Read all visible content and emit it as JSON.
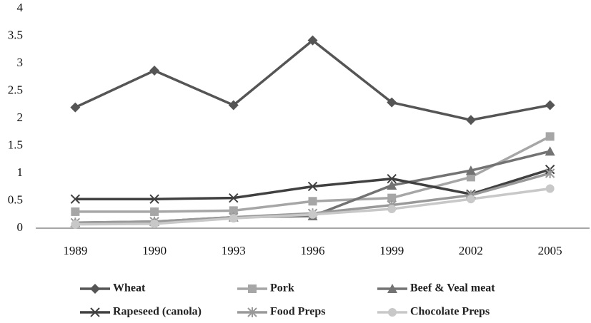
{
  "chart_data": {
    "type": "line",
    "categories": [
      "1989",
      "1990",
      "1993",
      "1996",
      "1999",
      "2002",
      "2005"
    ],
    "series": [
      {
        "name": "Wheat",
        "color": "#555555",
        "marker": "diamond",
        "values": [
          2.2,
          2.87,
          2.24,
          3.42,
          2.29,
          1.97,
          2.24
        ]
      },
      {
        "name": "Pork",
        "color": "#a6a6a6",
        "marker": "square",
        "values": [
          0.3,
          0.3,
          0.32,
          0.49,
          0.55,
          0.93,
          1.67
        ]
      },
      {
        "name": "Beef & Veal meat",
        "color": "#737373",
        "marker": "triangle",
        "values": [
          0.1,
          0.12,
          0.2,
          0.22,
          0.78,
          1.05,
          1.4
        ]
      },
      {
        "name": "Rapeseed (canola)",
        "color": "#404040",
        "marker": "x",
        "values": [
          0.53,
          0.53,
          0.55,
          0.76,
          0.9,
          0.62,
          1.07
        ]
      },
      {
        "name": "Food Preps",
        "color": "#999999",
        "marker": "star",
        "values": [
          0.1,
          0.12,
          0.2,
          0.27,
          0.42,
          0.6,
          1.0
        ]
      },
      {
        "name": "Chocolate Preps",
        "color": "#c8c8c8",
        "marker": "circle",
        "values": [
          0.07,
          0.08,
          0.18,
          0.25,
          0.35,
          0.53,
          0.72
        ]
      }
    ],
    "ylim": [
      0,
      4
    ],
    "yticks": [
      0,
      0.5,
      1,
      1.5,
      2,
      2.5,
      3,
      3.5,
      4
    ],
    "grid": false,
    "legend": "bottom"
  }
}
